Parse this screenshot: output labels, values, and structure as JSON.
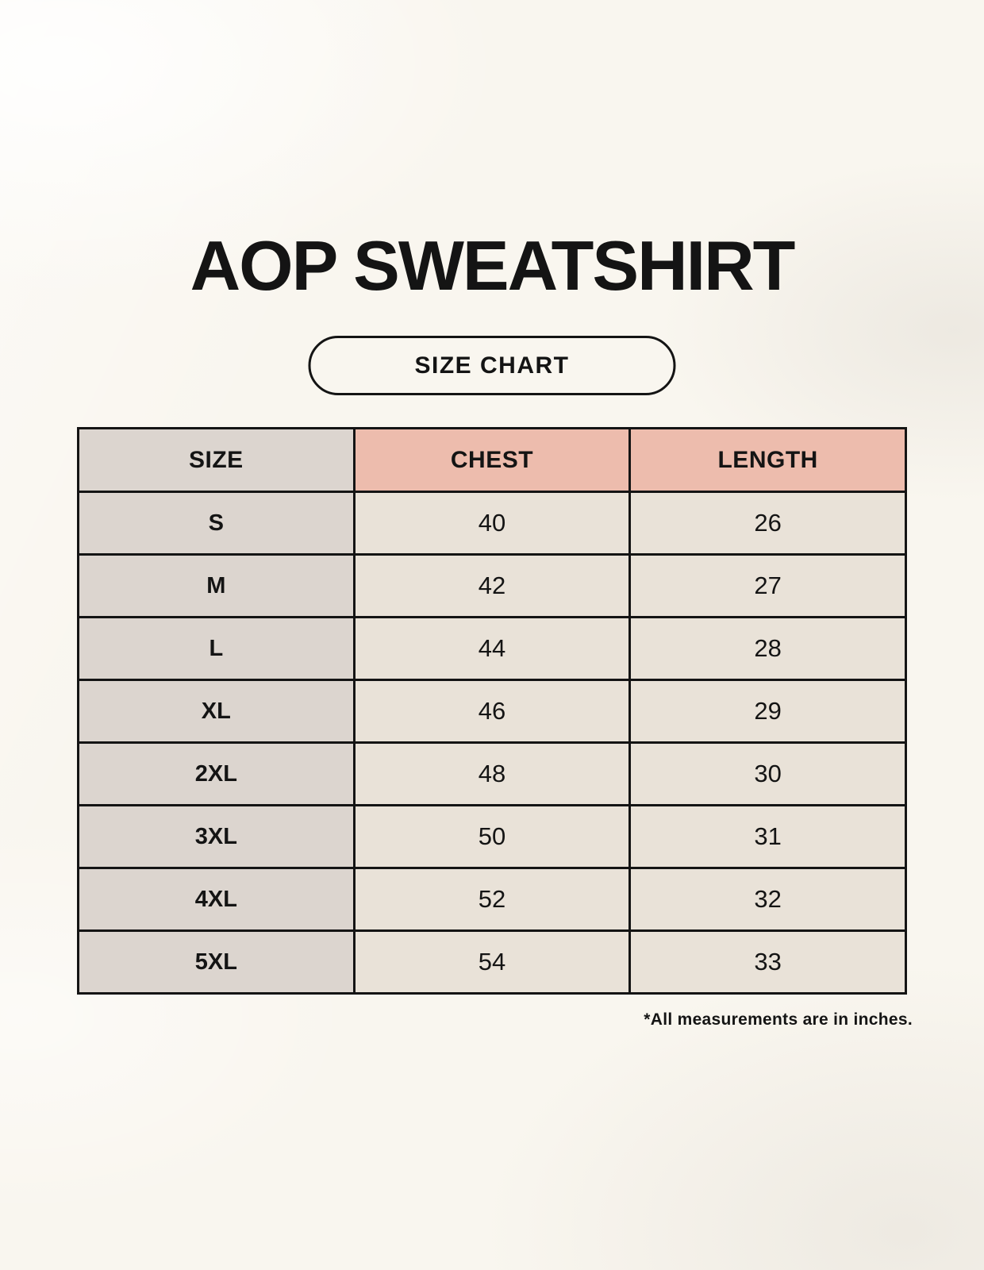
{
  "page": {
    "title": "AOP SWEATSHIRT",
    "badge_label": "SIZE CHART",
    "footnote": "*All measurements are in inches."
  },
  "colors": {
    "page_bg": "#F9F6EF",
    "border": "#141414",
    "text": "#141414",
    "header_size_bg": "#DCD5CF",
    "header_measure_bg": "#EDBCAD",
    "size_col_bg": "#DCD5CF",
    "value_cell_bg": "#E9E2D8"
  },
  "chart_data": {
    "type": "table",
    "title": "AOP SWEATSHIRT",
    "subtitle": "SIZE CHART",
    "units": "inches",
    "columns": [
      "SIZE",
      "CHEST",
      "LENGTH"
    ],
    "rows": [
      [
        "S",
        "40",
        "26"
      ],
      [
        "M",
        "42",
        "27"
      ],
      [
        "L",
        "44",
        "28"
      ],
      [
        "XL",
        "46",
        "29"
      ],
      [
        "2XL",
        "48",
        "30"
      ],
      [
        "3XL",
        "50",
        "31"
      ],
      [
        "4XL",
        "52",
        "32"
      ],
      [
        "5XL",
        "54",
        "33"
      ]
    ],
    "note": "*All measurements are in inches."
  }
}
